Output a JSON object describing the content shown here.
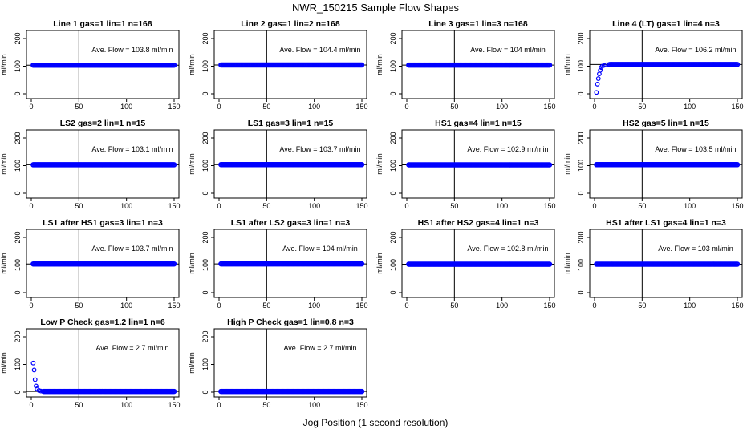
{
  "figure": {
    "title": "NWR_150215  Sample Flow Shapes",
    "xlabel": "Jog Position (1 second resolution)"
  },
  "style": {
    "point_color": "#0000ff",
    "axis_color": "#000000"
  },
  "chart_data": [
    {
      "type": "scatter",
      "title": "Line 1 gas=1 lin=1 n=168",
      "ylabel": "ml/min",
      "annotation": "Ave. Flow = 103.8  ml/min",
      "shape": "flat",
      "level": 103.8,
      "xlim": [
        0,
        150
      ],
      "ylim": [
        0,
        200
      ],
      "xticks": [
        0,
        50,
        100,
        150
      ],
      "yticks": [
        0,
        100,
        200
      ],
      "hline": 103.8,
      "vline": 50
    },
    {
      "type": "scatter",
      "title": "Line 2 gas=1 lin=2 n=168",
      "ylabel": "ml/min",
      "annotation": "Ave. Flow = 104.4  ml/min",
      "shape": "flat",
      "level": 104.4,
      "xlim": [
        0,
        150
      ],
      "ylim": [
        0,
        200
      ],
      "xticks": [
        0,
        50,
        100,
        150
      ],
      "yticks": [
        0,
        100,
        200
      ],
      "hline": 104.4,
      "vline": 50
    },
    {
      "type": "scatter",
      "title": "Line 3 gas=1 lin=3 n=168",
      "ylabel": "ml/min",
      "annotation": "Ave. Flow = 104  ml/min",
      "shape": "flat",
      "level": 104,
      "xlim": [
        0,
        150
      ],
      "ylim": [
        0,
        200
      ],
      "xticks": [
        0,
        50,
        100,
        150
      ],
      "yticks": [
        0,
        100,
        200
      ],
      "hline": 104,
      "vline": 50
    },
    {
      "type": "scatter",
      "title": "Line 4 (LT) gas=1 lin=4 n=3",
      "ylabel": "ml/min",
      "annotation": "Ave. Flow = 106.2  ml/min",
      "shape": "rise",
      "level": 106.2,
      "xlim": [
        0,
        150
      ],
      "ylim": [
        0,
        200
      ],
      "xticks": [
        0,
        50,
        100,
        150
      ],
      "yticks": [
        0,
        100,
        200
      ],
      "hline": 106.2,
      "vline": 50,
      "early_points": [
        [
          2,
          5
        ],
        [
          3,
          35
        ],
        [
          4,
          55
        ],
        [
          5,
          72
        ],
        [
          6,
          85
        ],
        [
          7,
          95
        ],
        [
          8,
          100
        ],
        [
          10,
          103
        ],
        [
          12,
          105
        ],
        [
          15,
          106
        ]
      ]
    },
    {
      "type": "scatter",
      "title": "LS2 gas=2 lin=1 n=15",
      "ylabel": "ml/min",
      "annotation": "Ave. Flow = 103.1  ml/min",
      "shape": "flat",
      "level": 103.1,
      "xlim": [
        0,
        150
      ],
      "ylim": [
        0,
        200
      ],
      "xticks": [
        0,
        50,
        100,
        150
      ],
      "yticks": [
        0,
        100,
        200
      ],
      "hline": 103.1,
      "vline": 50
    },
    {
      "type": "scatter",
      "title": "LS1 gas=3 lin=1 n=15",
      "ylabel": "ml/min",
      "annotation": "Ave. Flow = 103.7  ml/min",
      "shape": "flat",
      "level": 103.7,
      "xlim": [
        0,
        150
      ],
      "ylim": [
        0,
        200
      ],
      "xticks": [
        0,
        50,
        100,
        150
      ],
      "yticks": [
        0,
        100,
        200
      ],
      "hline": 103.7,
      "vline": 50
    },
    {
      "type": "scatter",
      "title": "HS1 gas=4 lin=1 n=15",
      "ylabel": "ml/min",
      "annotation": "Ave. Flow = 102.9  ml/min",
      "shape": "flat",
      "level": 102.9,
      "xlim": [
        0,
        150
      ],
      "ylim": [
        0,
        200
      ],
      "xticks": [
        0,
        50,
        100,
        150
      ],
      "yticks": [
        0,
        100,
        200
      ],
      "hline": 102.9,
      "vline": 50
    },
    {
      "type": "scatter",
      "title": "HS2 gas=5 lin=1 n=15",
      "ylabel": "ml/min",
      "annotation": "Ave. Flow = 103.5  ml/min",
      "shape": "flat",
      "level": 103.5,
      "xlim": [
        0,
        150
      ],
      "ylim": [
        0,
        200
      ],
      "xticks": [
        0,
        50,
        100,
        150
      ],
      "yticks": [
        0,
        100,
        200
      ],
      "hline": 103.5,
      "vline": 50
    },
    {
      "type": "scatter",
      "title": "LS1 after HS1 gas=3 lin=1 n=3",
      "ylabel": "ml/min",
      "annotation": "Ave. Flow = 103.7  ml/min",
      "shape": "flat",
      "level": 103.7,
      "xlim": [
        0,
        150
      ],
      "ylim": [
        0,
        200
      ],
      "xticks": [
        0,
        50,
        100,
        150
      ],
      "yticks": [
        0,
        100,
        200
      ],
      "hline": 103.7,
      "vline": 50
    },
    {
      "type": "scatter",
      "title": "LS1 after LS2 gas=3 lin=1 n=3",
      "ylabel": "ml/min",
      "annotation": "Ave. Flow = 104  ml/min",
      "shape": "flat",
      "level": 104,
      "xlim": [
        0,
        150
      ],
      "ylim": [
        0,
        200
      ],
      "xticks": [
        0,
        50,
        100,
        150
      ],
      "yticks": [
        0,
        100,
        200
      ],
      "hline": 104,
      "vline": 50
    },
    {
      "type": "scatter",
      "title": "HS1 after HS2 gas=4 lin=1 n=3",
      "ylabel": "ml/min",
      "annotation": "Ave. Flow = 102.8  ml/min",
      "shape": "flat",
      "level": 102.8,
      "xlim": [
        0,
        150
      ],
      "ylim": [
        0,
        200
      ],
      "xticks": [
        0,
        50,
        100,
        150
      ],
      "yticks": [
        0,
        100,
        200
      ],
      "hline": 102.8,
      "vline": 50
    },
    {
      "type": "scatter",
      "title": "HS1 after LS1 gas=4 lin=1 n=3",
      "ylabel": "ml/min",
      "annotation": "Ave. Flow = 103  ml/min",
      "shape": "flat",
      "level": 103,
      "xlim": [
        0,
        150
      ],
      "ylim": [
        0,
        200
      ],
      "xticks": [
        0,
        50,
        100,
        150
      ],
      "yticks": [
        0,
        100,
        200
      ],
      "hline": 103,
      "vline": 50
    },
    {
      "type": "scatter",
      "title": "Low P Check gas=1.2 lin=1 n=6",
      "ylabel": "ml/min",
      "annotation": "Ave. Flow = 2.7  ml/min",
      "shape": "decay",
      "level": 2.7,
      "xlim": [
        0,
        150
      ],
      "ylim": [
        0,
        200
      ],
      "xticks": [
        0,
        50,
        100,
        150
      ],
      "yticks": [
        0,
        100,
        200
      ],
      "hline": 2.7,
      "vline": 50,
      "early_points": [
        [
          2,
          105
        ],
        [
          3,
          80
        ],
        [
          4,
          45
        ],
        [
          5,
          22
        ],
        [
          6,
          12
        ],
        [
          8,
          6
        ],
        [
          10,
          4
        ],
        [
          12,
          3
        ]
      ]
    },
    {
      "type": "scatter",
      "title": "High P Check gas=1 lin=0.8 n=3",
      "ylabel": "ml/min",
      "annotation": "Ave. Flow = 2.7  ml/min",
      "shape": "flat",
      "level": 2.7,
      "xlim": [
        0,
        150
      ],
      "ylim": [
        0,
        200
      ],
      "xticks": [
        0,
        50,
        100,
        150
      ],
      "yticks": [
        0,
        100,
        200
      ],
      "hline": 2.7,
      "vline": 50
    }
  ]
}
